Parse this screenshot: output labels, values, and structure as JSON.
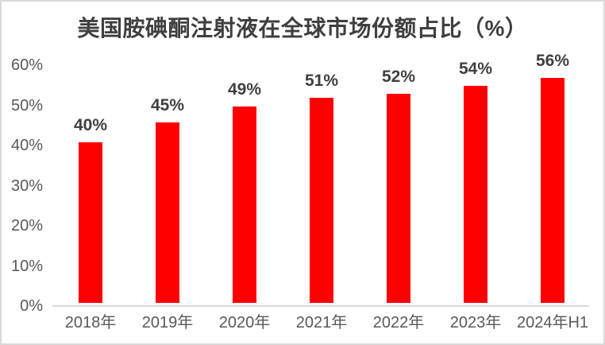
{
  "page": {
    "background_color": "#FFFFFF",
    "border_color": "#D9D9D9"
  },
  "chart_data": {
    "type": "bar",
    "title": "美国胺碘酮注射液在全球市场份额占比（%）",
    "categories": [
      "2018年",
      "2019年",
      "2020年",
      "2021年",
      "2022年",
      "2023年",
      "2024年H1"
    ],
    "values": [
      40,
      45,
      49,
      51,
      52,
      54,
      56
    ],
    "data_labels": [
      "40%",
      "45%",
      "49%",
      "51%",
      "52%",
      "54%",
      "56%"
    ],
    "xlabel": "",
    "ylabel": "",
    "ylim": [
      0,
      60
    ],
    "y_ticks": [
      {
        "value": 0,
        "label": "0%"
      },
      {
        "value": 10,
        "label": "10%"
      },
      {
        "value": 20,
        "label": "20%"
      },
      {
        "value": 30,
        "label": "30%"
      },
      {
        "value": 40,
        "label": "40%"
      },
      {
        "value": 50,
        "label": "50%"
      },
      {
        "value": 60,
        "label": "60%"
      }
    ],
    "grid": false,
    "legend": false,
    "colors": {
      "bar": "#FE0000",
      "title_text": "#3F3F3F",
      "value_label_text": "#3F3F3F",
      "axis_tick_text": "#595959",
      "axis_line": "#D9D9D9"
    }
  }
}
